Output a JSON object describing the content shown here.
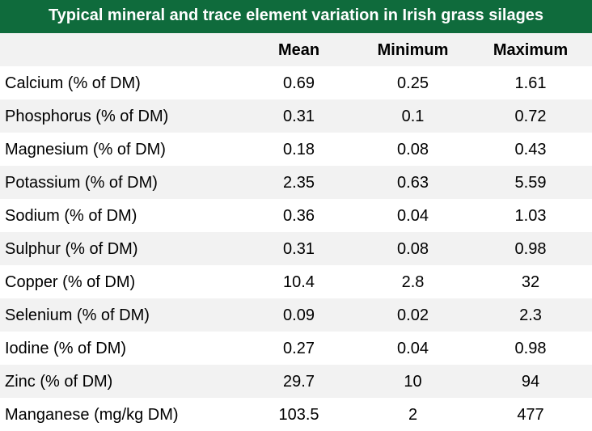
{
  "title": "Typical mineral and trace element variation in Irish grass silages",
  "columns": [
    "",
    "Mean",
    "Minimum",
    "Maximum"
  ],
  "colors": {
    "title_background": "#0f6b3c",
    "title_text": "#ffffff",
    "row_shade": "#f2f2f2"
  },
  "rows": [
    {
      "label": "Calcium (% of DM)",
      "mean": "0.69",
      "min": "0.25",
      "max": "1.61"
    },
    {
      "label": "Phosphorus (% of DM)",
      "mean": "0.31",
      "min": "0.1",
      "max": "0.72"
    },
    {
      "label": "Magnesium (% of DM)",
      "mean": "0.18",
      "min": "0.08",
      "max": "0.43"
    },
    {
      "label": "Potassium (% of DM)",
      "mean": "2.35",
      "min": "0.63",
      "max": "5.59"
    },
    {
      "label": "Sodium (% of DM)",
      "mean": "0.36",
      "min": "0.04",
      "max": "1.03"
    },
    {
      "label": "Sulphur (% of DM)",
      "mean": "0.31",
      "min": "0.08",
      "max": "0.98"
    },
    {
      "label": "Copper (% of DM)",
      "mean": "10.4",
      "min": "2.8",
      "max": "32"
    },
    {
      "label": "Selenium (% of DM)",
      "mean": "0.09",
      "min": "0.02",
      "max": "2.3"
    },
    {
      "label": "Iodine (% of DM)",
      "mean": "0.27",
      "min": "0.04",
      "max": "0.98"
    },
    {
      "label": "Zinc (% of DM)",
      "mean": "29.7",
      "min": "10",
      "max": "94"
    },
    {
      "label": "Manganese (mg/kg DM)",
      "mean": "103.5",
      "min": "2",
      "max": "477"
    }
  ]
}
